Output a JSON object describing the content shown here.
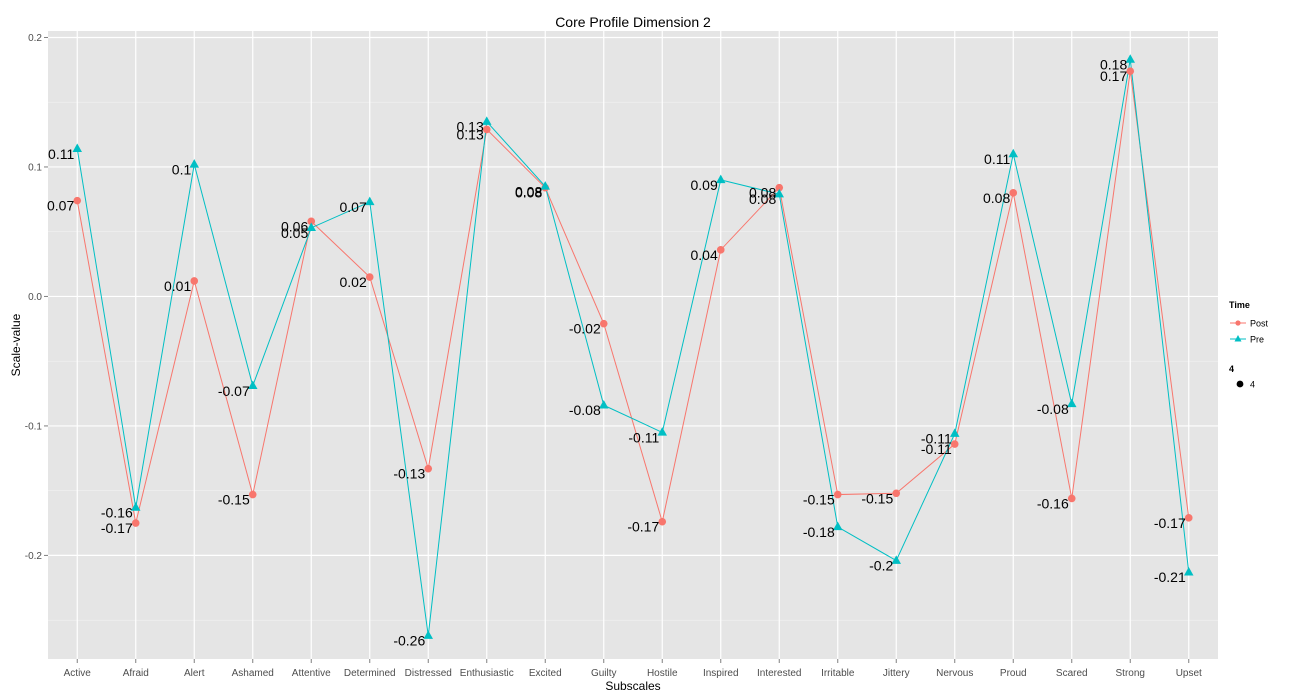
{
  "chart_data": {
    "type": "line",
    "title": "Core Profile Dimension 2",
    "xlabel": "Subscales",
    "ylabel": "Scale-value",
    "ylim": [
      -0.28,
      0.205
    ],
    "yticks": [
      "0.2",
      "0.1",
      "0.0",
      "-0.1",
      "-0.2"
    ],
    "ytick_values": [
      0.2,
      0.1,
      0.0,
      -0.1,
      -0.2
    ],
    "grid": true,
    "legend_position": "right",
    "categories": [
      "Active",
      "Afraid",
      "Alert",
      "Ashamed",
      "Attentive",
      "Determined",
      "Distressed",
      "Enthusiastic",
      "Excited",
      "Guilty",
      "Hostile",
      "Inspired",
      "Interested",
      "Irritable",
      "Jittery",
      "Nervous",
      "Proud",
      "Scared",
      "Strong",
      "Upset"
    ],
    "series": [
      {
        "name": "Post",
        "color": "#F8766D",
        "marker": "circle",
        "values": [
          0.074,
          -0.175,
          0.012,
          -0.153,
          0.058,
          0.015,
          -0.133,
          0.129,
          0.084,
          -0.021,
          -0.174,
          0.036,
          0.084,
          -0.153,
          -0.152,
          -0.114,
          0.08,
          -0.156,
          0.174,
          -0.171
        ],
        "labels": [
          "0.07",
          "-0.17",
          "0.01",
          "-0.15",
          "0.06",
          "0.02",
          "-0.13",
          "0.13",
          "0.08",
          "-0.02",
          "-0.17",
          "0.04",
          "0.08",
          "-0.15",
          "-0.15",
          "-0.11",
          "0.08",
          "-0.16",
          "0.17",
          "-0.17"
        ]
      },
      {
        "name": "Pre",
        "color": "#00BFC4",
        "marker": "triangle",
        "values": [
          0.114,
          -0.163,
          0.102,
          -0.069,
          0.053,
          0.073,
          -0.262,
          0.135,
          0.085,
          -0.084,
          -0.105,
          0.09,
          0.079,
          -0.178,
          -0.204,
          -0.106,
          0.11,
          -0.083,
          0.183,
          -0.213
        ],
        "labels": [
          "0.11",
          "-0.16",
          "0.1",
          "-0.07",
          "0.05",
          "0.07",
          "-0.26",
          "0.13",
          "0.08",
          "-0.08",
          "-0.11",
          "0.09",
          "0.08",
          "-0.18",
          "-0.2",
          "-0.11",
          "0.11",
          "-0.08",
          "0.18",
          "-0.21"
        ]
      }
    ],
    "legend": {
      "title": "Time",
      "items": [
        "Post",
        "Pre"
      ],
      "size_title": "4",
      "size_item": "4"
    }
  }
}
